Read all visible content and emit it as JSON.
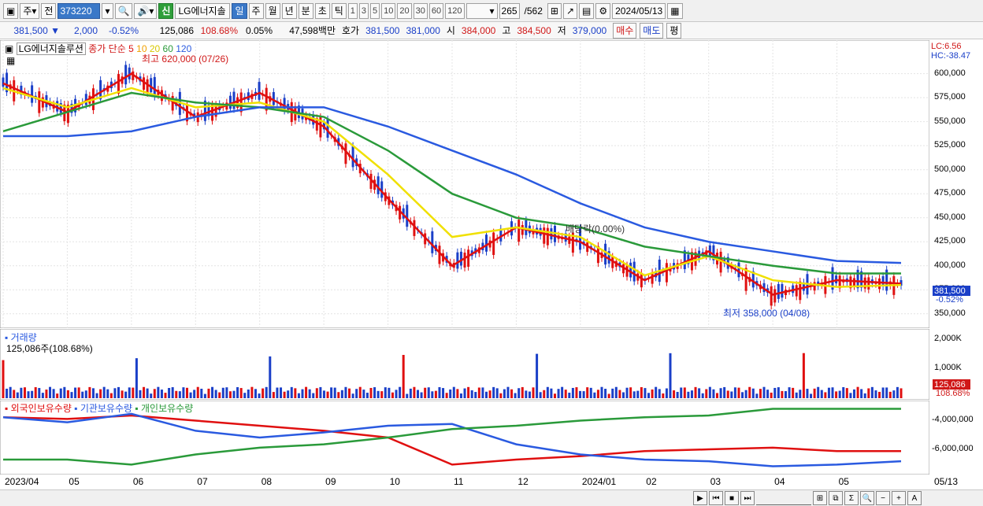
{
  "toolbar": {
    "market": "주",
    "prev_label": "전",
    "code": "373220",
    "stock_name": "LG에너지솔",
    "new_badge": "신",
    "periods": [
      "일",
      "주",
      "월",
      "년",
      "분",
      "초",
      "틱"
    ],
    "selected_period": "일",
    "intervals": [
      "1",
      "3",
      "5",
      "10",
      "20",
      "30",
      "60",
      "120"
    ],
    "count_current": "265",
    "count_total": "/562",
    "date": "2024/05/13"
  },
  "quote": {
    "price": "381,500",
    "change": "2,000",
    "change_pct": "-0.52%",
    "volume": "125,086",
    "volume_ratio": "108.68%",
    "turnover": "0.05%",
    "amount": "47,598백만",
    "hoga_label": "호가",
    "ask": "381,500",
    "bid": "381,000",
    "open_label": "시",
    "open": "384,000",
    "high_label": "고",
    "high": "384,500",
    "low_label": "저",
    "low": "379,000",
    "buy_label": "매수",
    "sell_label": "매도",
    "eval_label": "평"
  },
  "price_panel": {
    "name": "LG에너지솔루션",
    "legend_title": "종가 단순",
    "ma_legend": [
      {
        "label": "5",
        "color": "#e01010"
      },
      {
        "label": "10",
        "color": "#f0a000"
      },
      {
        "label": "20",
        "color": "#f0e000"
      },
      {
        "label": "60",
        "color": "#2a9a3a"
      },
      {
        "label": "120",
        "color": "#2a5ae0"
      }
    ],
    "lc": "LC:6.56",
    "hc": "HC:-38.47",
    "high_note": "최고 620,000 (07/26)",
    "low_note": "최저 358,000 (04/08)",
    "div_note": "배당락(0.00%)",
    "price_tag": "381,500",
    "pct_tag": "-0.52%",
    "y_ticks": [
      "600,000",
      "575,000",
      "550,000",
      "525,000",
      "500,000",
      "475,000",
      "450,000",
      "425,000",
      "400,000",
      "375,000",
      "350,000"
    ]
  },
  "volume_panel": {
    "title": "거래량",
    "value": "125,086주(108.68%)",
    "y_ticks": [
      "2,000K",
      "1,000K"
    ],
    "tag": "125,086",
    "tag_pct": "108.68%"
  },
  "holding_panel": {
    "legends": [
      {
        "label": "외국인보유수량",
        "color": "#e01010"
      },
      {
        "label": "기관보유수량",
        "color": "#2a5ae0"
      },
      {
        "label": "개인보유수량",
        "color": "#2a9a3a"
      }
    ],
    "y_ticks": [
      "-4,000,000",
      "-6,000,000"
    ]
  },
  "x_axis": [
    "2023/04",
    "05",
    "06",
    "07",
    "08",
    "09",
    "10",
    "11",
    "12",
    "2024/01",
    "02",
    "03",
    "04",
    "05",
    "05/13"
  ],
  "chart_data": {
    "type": "line",
    "title": "",
    "ylim": [
      340000,
      630000
    ],
    "x": [
      "2023/04",
      "05",
      "06",
      "07",
      "08",
      "09",
      "10",
      "11",
      "12",
      "2024/01",
      "02",
      "03",
      "04",
      "05",
      "05/13"
    ],
    "series": [
      {
        "name": "5",
        "values": [
          590000,
          560000,
          600000,
          555000,
          580000,
          545000,
          470000,
          400000,
          440000,
          425000,
          385000,
          415000,
          370000,
          385000,
          381500
        ]
      },
      {
        "name": "20",
        "values": [
          585000,
          565000,
          585000,
          565000,
          570000,
          550000,
          495000,
          430000,
          440000,
          430000,
          390000,
          410000,
          385000,
          378000,
          380000
        ]
      },
      {
        "name": "60",
        "values": [
          540000,
          560000,
          580000,
          570000,
          565000,
          555000,
          520000,
          475000,
          450000,
          440000,
          420000,
          410000,
          400000,
          392000,
          392000
        ]
      },
      {
        "name": "120",
        "values": [
          535000,
          535000,
          540000,
          555000,
          565000,
          565000,
          545000,
          520000,
          495000,
          465000,
          440000,
          425000,
          415000,
          405000,
          403000
        ]
      }
    ],
    "volume_ylim": [
      0,
      2400000
    ],
    "holding_series": [
      {
        "name": "외국인보유수량",
        "values": [
          -4000000,
          -4100000,
          -3900000,
          -4200000,
          -4500000,
          -4800000,
          -5200000,
          -6800000,
          -6500000,
          -6300000,
          -6000000,
          -5900000,
          -5800000,
          -6000000,
          -6000000
        ]
      },
      {
        "name": "기관보유수량",
        "values": [
          -4000000,
          -4300000,
          -3800000,
          -4800000,
          -5200000,
          -4900000,
          -4500000,
          -4400000,
          -5600000,
          -6200000,
          -6500000,
          -6600000,
          -6900000,
          -6800000,
          -6600000
        ]
      },
      {
        "name": "개인보유수량",
        "values": [
          -6500000,
          -6500000,
          -6800000,
          -6200000,
          -5800000,
          -5600000,
          -5200000,
          -4700000,
          -4500000,
          -4200000,
          -4000000,
          -3900000,
          -3500000,
          -3500000,
          -3500000
        ]
      }
    ]
  }
}
